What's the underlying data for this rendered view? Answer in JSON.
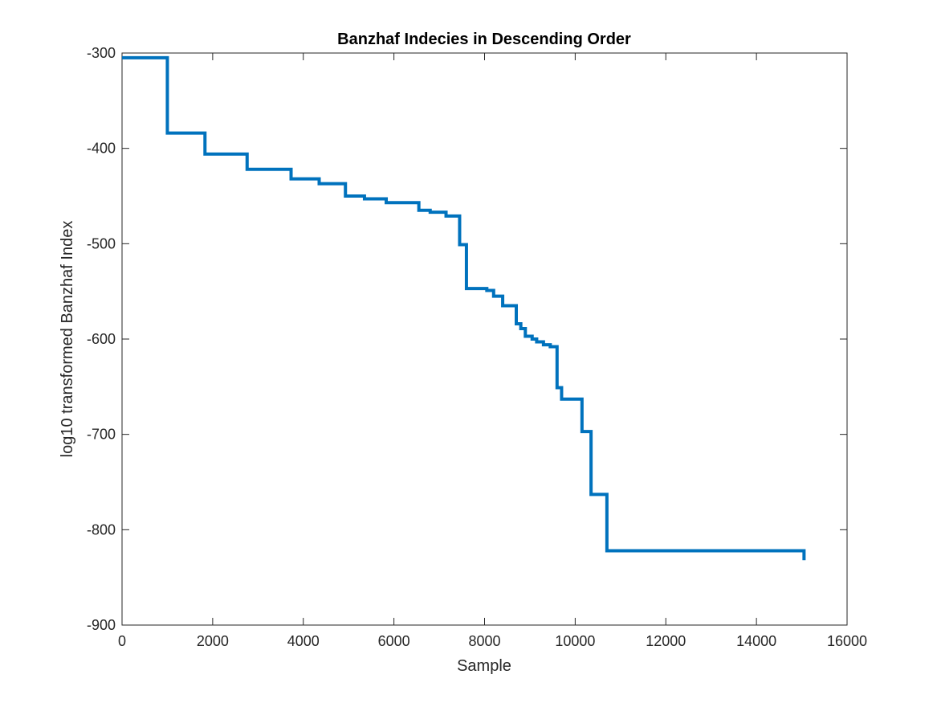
{
  "chart_data": {
    "type": "line",
    "title": "Banzhaf Indecies in Descending Order",
    "xlabel": "Sample",
    "ylabel": "log10 transformed Banzhaf Index",
    "xlim": [
      0,
      16000
    ],
    "ylim": [
      -900,
      -300
    ],
    "x_ticks": [
      0,
      2000,
      4000,
      6000,
      8000,
      10000,
      12000,
      14000,
      16000
    ],
    "x_tick_labels": [
      "0",
      "2000",
      "4000",
      "6000",
      "8000",
      "10000",
      "12000",
      "14000",
      "16000"
    ],
    "y_ticks": [
      -300,
      -400,
      -500,
      -600,
      -700,
      -800,
      -900
    ],
    "y_tick_labels": [
      "-300",
      "-400",
      "-500",
      "-600",
      "-700",
      "-800",
      "-900"
    ],
    "grid": false,
    "colors": {
      "series": "#0072BD",
      "axis": "#262626"
    },
    "series": [
      {
        "step": true,
        "x": [
          0,
          1000,
          1830,
          2760,
          3730,
          4350,
          4930,
          5350,
          5830,
          6550,
          6800,
          7150,
          7450,
          7600,
          8050,
          8200,
          8400,
          8700,
          8800,
          8900,
          9050,
          9150,
          9300,
          9450,
          9600,
          9700,
          10150,
          10350,
          10700,
          15050
        ],
        "y": [
          -305,
          -384,
          -406,
          -422,
          -432,
          -437,
          -450,
          -453,
          -457,
          -465,
          -467,
          -471,
          -501,
          -547,
          -549,
          -555,
          -565,
          -584,
          -589,
          -597,
          -600,
          -603,
          -606,
          -608,
          -651,
          -663,
          -697,
          -763,
          -822,
          -832
        ]
      }
    ]
  }
}
